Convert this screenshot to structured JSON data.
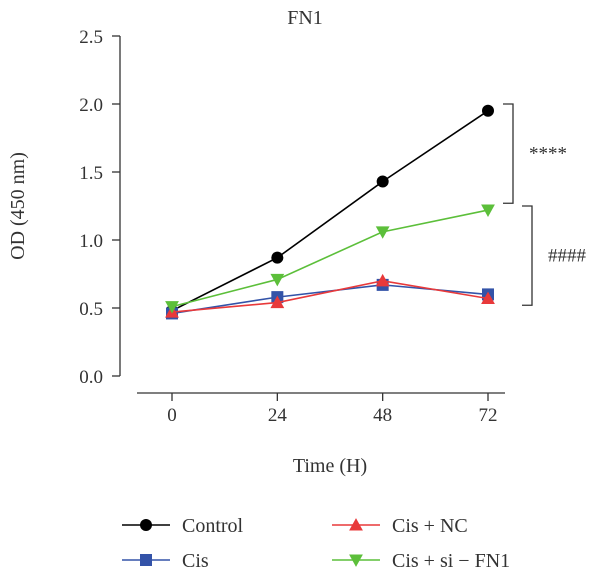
{
  "chart_data": {
    "type": "line",
    "title": "FN1",
    "xlabel": "Time (H)",
    "ylabel": "OD (450 nm)",
    "x": [
      0,
      24,
      48,
      72
    ],
    "xticks": [
      "0",
      "24",
      "48",
      "72"
    ],
    "yticks": [
      "0.0",
      "0.5",
      "1.0",
      "1.5",
      "2.0",
      "2.5"
    ],
    "ylim": [
      0,
      2.5
    ],
    "grid": false,
    "legend_position": "bottom",
    "series": [
      {
        "name": "Control",
        "marker": "circle",
        "color": "#000000",
        "values": [
          0.48,
          0.87,
          1.43,
          1.95
        ]
      },
      {
        "name": "Cis",
        "marker": "square",
        "color": "#3353a8",
        "values": [
          0.46,
          0.58,
          0.67,
          0.6
        ]
      },
      {
        "name": "Cis + NC",
        "marker": "triangle-up",
        "color": "#e8393a",
        "values": [
          0.47,
          0.54,
          0.7,
          0.57
        ]
      },
      {
        "name": "Cis + si − FN1",
        "marker": "triangle-down",
        "color": "#5cbf3a",
        "values": [
          0.51,
          0.71,
          1.06,
          1.22
        ]
      }
    ],
    "annotations": [
      {
        "text": "****",
        "from": 1.27,
        "to": 2.0
      },
      {
        "text": "####",
        "from": 0.52,
        "to": 1.25
      }
    ]
  }
}
